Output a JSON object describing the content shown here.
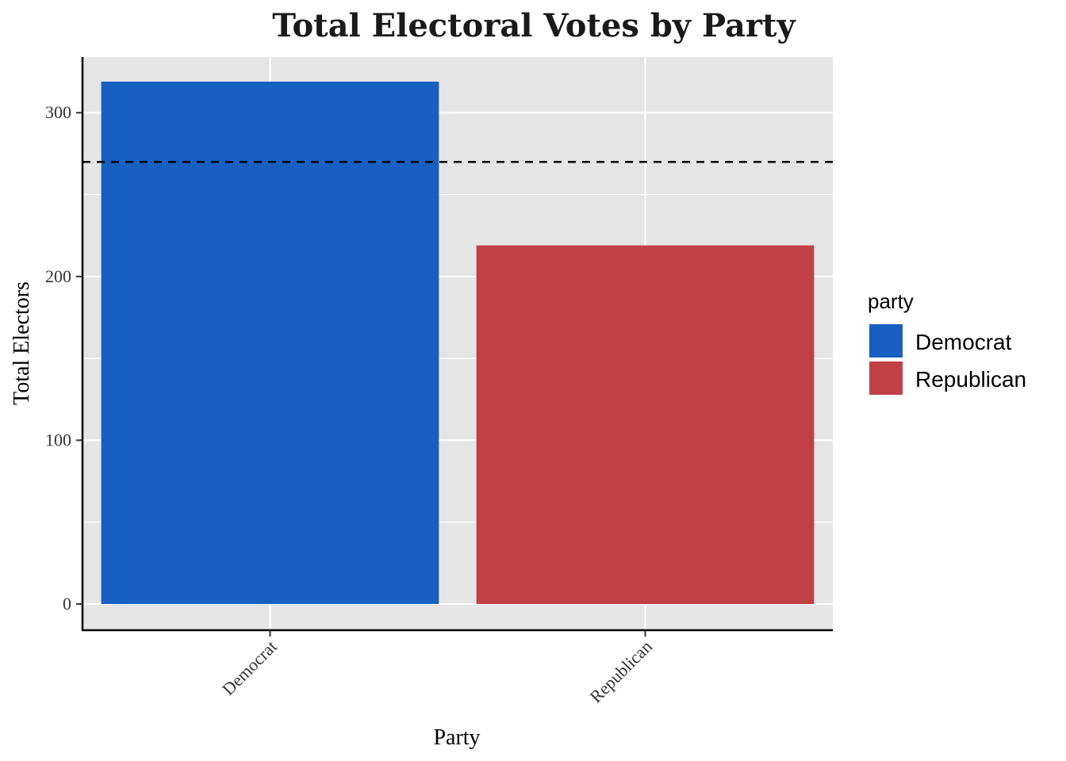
{
  "chart_data": {
    "type": "bar",
    "title": "Total Electoral Votes by Party",
    "xlabel": "Party",
    "ylabel": "Total Electors",
    "categories": [
      "Democrat",
      "Republican"
    ],
    "values": [
      319,
      219
    ],
    "colors": [
      "#175FC0",
      "#C04046"
    ],
    "ylim": [
      -16,
      334
    ],
    "yticks": [
      0,
      100,
      200,
      300
    ],
    "ytick_labels": [
      "0",
      "100",
      "200",
      "300"
    ],
    "reference_line": {
      "y": 270,
      "style": "dashed"
    },
    "grid": true,
    "legend": {
      "title": "party",
      "placement": "right",
      "entries": [
        {
          "label": "Democrat",
          "color": "#175FC0"
        },
        {
          "label": "Republican",
          "color": "#C04046"
        }
      ]
    }
  }
}
